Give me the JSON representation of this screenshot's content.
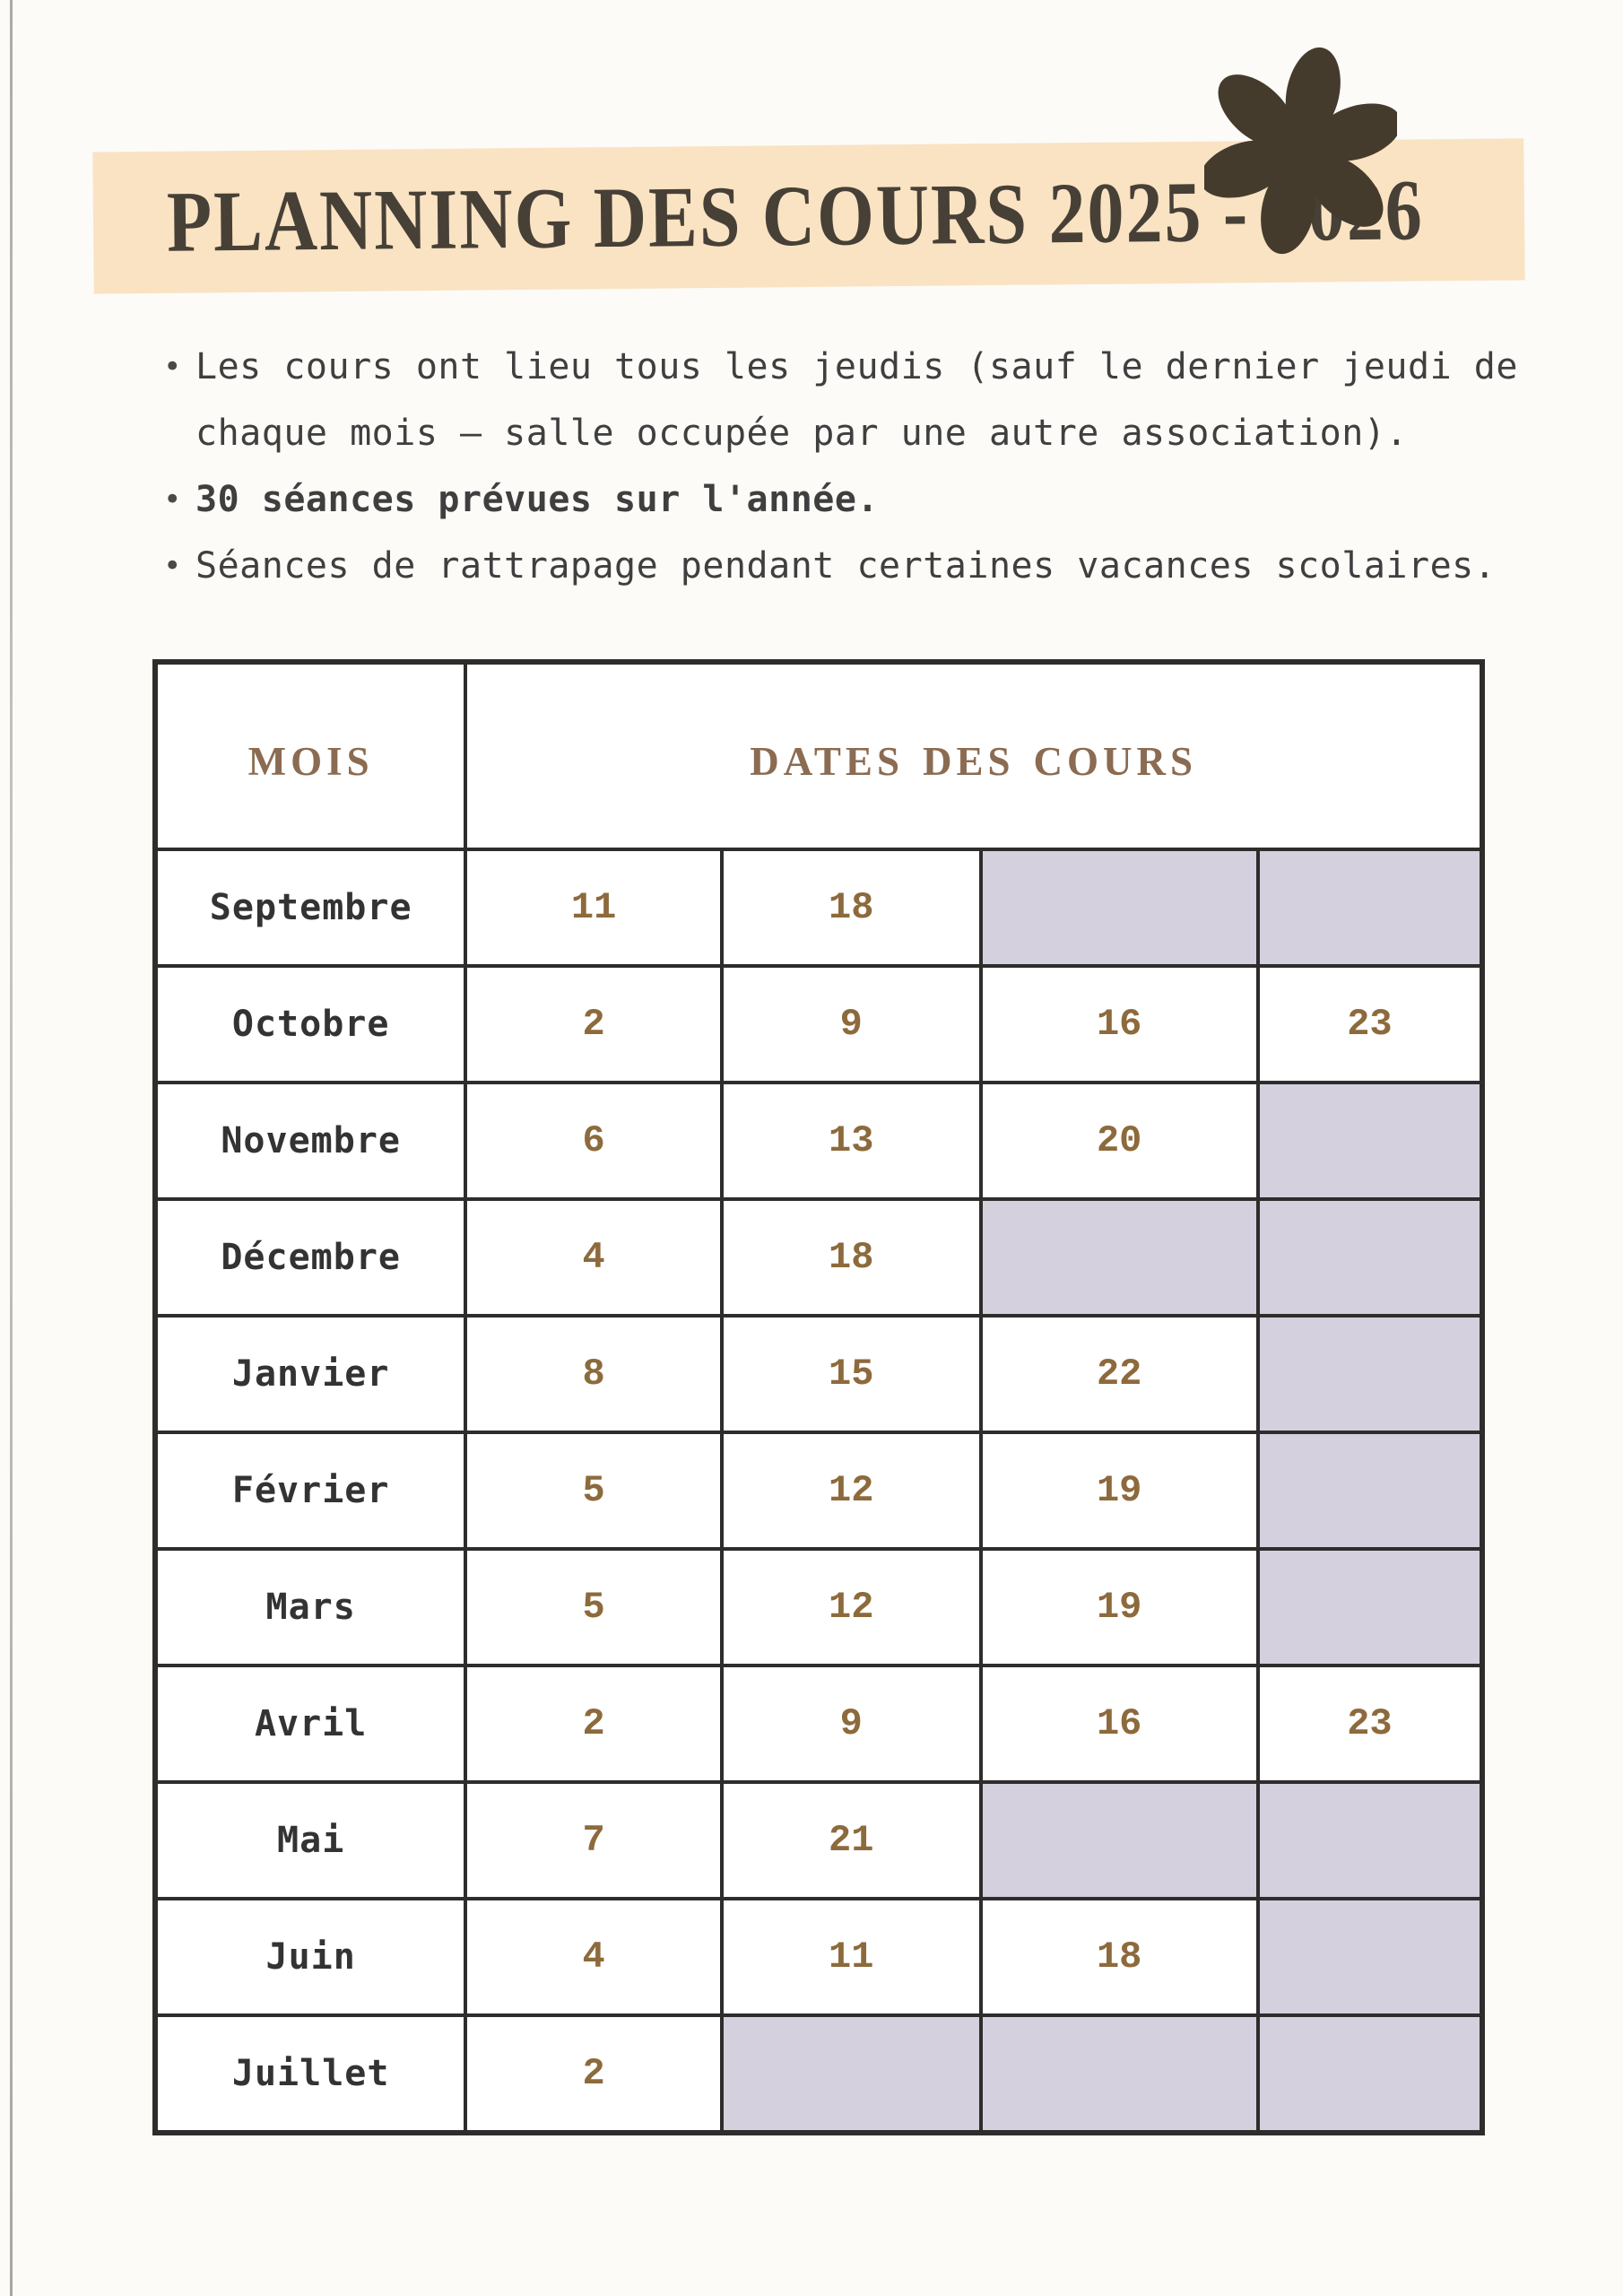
{
  "title": "PLANNING DES COURS 2025 - 2026",
  "bullets": [
    {
      "text": "Les cours ont lieu tous les jeudis (sauf le dernier jeudi de chaque mois – salle occupée par une autre association).",
      "bold": false
    },
    {
      "text": "30 séances prévues sur l'année.",
      "bold": true
    },
    {
      "text": "Séances de rattrapage pendant certaines vacances scolaires.",
      "bold": false
    }
  ],
  "bullet_glyph": "•",
  "table": {
    "headers": {
      "month": "Mois",
      "dates": "Dates des cours"
    },
    "rows": [
      {
        "month": "Septembre",
        "dates": [
          "11",
          "18",
          "",
          ""
        ]
      },
      {
        "month": "Octobre",
        "dates": [
          "2",
          "9",
          "16",
          "23"
        ]
      },
      {
        "month": "Novembre",
        "dates": [
          "6",
          "13",
          "20",
          ""
        ]
      },
      {
        "month": "Décembre",
        "dates": [
          "4",
          "18",
          "",
          ""
        ]
      },
      {
        "month": "Janvier",
        "dates": [
          "8",
          "15",
          "22",
          ""
        ]
      },
      {
        "month": "Février",
        "dates": [
          "5",
          "12",
          "19",
          ""
        ]
      },
      {
        "month": "Mars",
        "dates": [
          "5",
          "12",
          "19",
          ""
        ]
      },
      {
        "month": "Avril",
        "dates": [
          "2",
          "9",
          "16",
          "23"
        ]
      },
      {
        "month": "Mai",
        "dates": [
          "7",
          "21",
          "",
          ""
        ]
      },
      {
        "month": "Juin",
        "dates": [
          "4",
          "11",
          "18",
          ""
        ]
      },
      {
        "month": "Juillet",
        "dates": [
          "2",
          "",
          "",
          ""
        ]
      }
    ]
  },
  "icons": {
    "flower": "flower-icon"
  },
  "colors": {
    "banner": "#fae3c3",
    "title_ink": "#474036",
    "flower": "#453b2d",
    "body_ink": "#3f3f3f",
    "table_border": "#2e2d2b",
    "month_ink": "#333333",
    "date_ink": "#8d6a3c",
    "header_brown": "#8b6b51",
    "shaded_cell": "#d4d0de",
    "paper": "#fcfbf8"
  }
}
